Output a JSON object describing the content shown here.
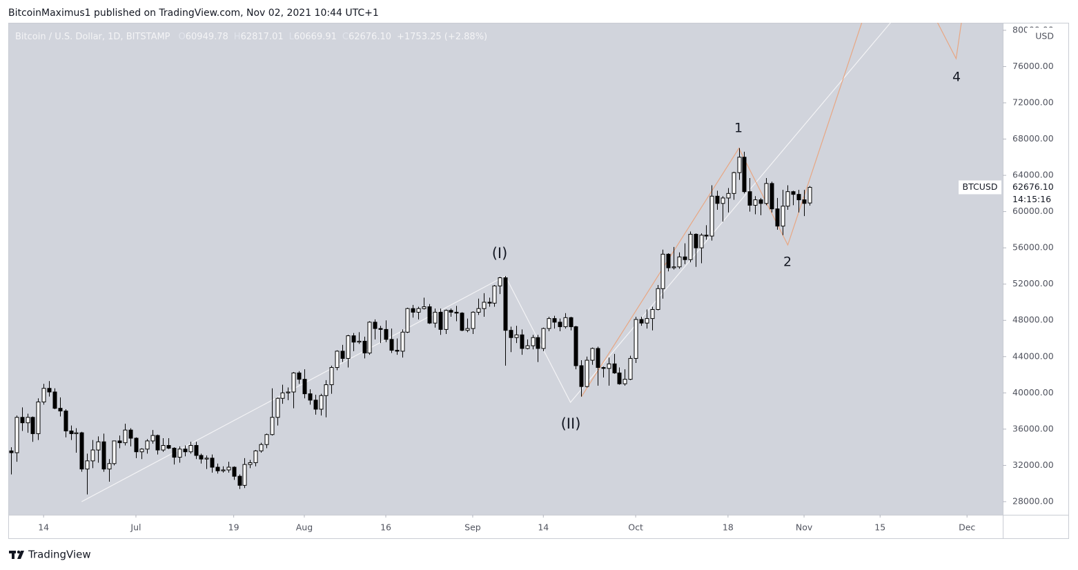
{
  "header": {
    "publisher": "BitcoinMaximus1 published on TradingView.com, Nov 02, 2021 10:44 UTC+1"
  },
  "footer": {
    "brand": "TradingView"
  },
  "chart_data": {
    "type": "candlestick",
    "title": "Bitcoin / U.S. Dollar, 1D, BITSTAMP",
    "ohlc_letters": [
      "O",
      "H",
      "L",
      "C"
    ],
    "ohlc_labels": [
      "60949.78",
      "62817.01",
      "60669.91",
      "62676.10"
    ],
    "change": "+1753.25 (+2.88%)",
    "symbol": "BTCUSD",
    "price_label": "62676.10",
    "countdown": "14:15:16",
    "currency": "USD",
    "up_color": "#ffffff",
    "down_color": "#000000",
    "wick_color": "#000000",
    "grid": false,
    "xlim": [
      "2021-06-07T12:00:00Z",
      "2021-12-07T14:00:00Z"
    ],
    "ylim": [
      26550,
      80830
    ],
    "xticks": [
      {
        "value": "2021-06-14",
        "label": "14"
      },
      {
        "value": "2021-07-01",
        "label": "Jul"
      },
      {
        "value": "2021-07-19",
        "label": "19"
      },
      {
        "value": "2021-08-01",
        "label": "Aug"
      },
      {
        "value": "2021-08-16",
        "label": "16"
      },
      {
        "value": "2021-09-01",
        "label": "Sep"
      },
      {
        "value": "2021-09-14",
        "label": "14"
      },
      {
        "value": "2021-10-01",
        "label": "Oct"
      },
      {
        "value": "2021-10-18",
        "label": "18"
      },
      {
        "value": "2021-11-01",
        "label": "Nov"
      },
      {
        "value": "2021-11-15",
        "label": "15"
      },
      {
        "value": "2021-12-01",
        "label": "Dec"
      }
    ],
    "yticks": [
      {
        "value": 28000,
        "label": "28000.00"
      },
      {
        "value": 32000,
        "label": "32000.00"
      },
      {
        "value": 36000,
        "label": "36000.00"
      },
      {
        "value": 40000,
        "label": "40000.00"
      },
      {
        "value": 44000,
        "label": "44000.00"
      },
      {
        "value": 48000,
        "label": "48000.00"
      },
      {
        "value": 52000,
        "label": "52000.00"
      },
      {
        "value": 56000,
        "label": "56000.00"
      },
      {
        "value": 60000,
        "label": "60000.00"
      },
      {
        "value": 64000,
        "label": "64000.00"
      },
      {
        "value": 68000,
        "label": "68000.00"
      },
      {
        "value": 72000,
        "label": "72000.00"
      },
      {
        "value": 76000,
        "label": "76000.00"
      },
      {
        "value": 80000,
        "label": "80000.00"
      }
    ],
    "x": [
      "2021-06-08",
      "2021-06-09",
      "2021-06-10",
      "2021-06-11",
      "2021-06-12",
      "2021-06-13",
      "2021-06-14",
      "2021-06-15",
      "2021-06-16",
      "2021-06-17",
      "2021-06-18",
      "2021-06-19",
      "2021-06-20",
      "2021-06-21",
      "2021-06-22",
      "2021-06-23",
      "2021-06-24",
      "2021-06-25",
      "2021-06-26",
      "2021-06-27",
      "2021-06-28",
      "2021-06-29",
      "2021-06-30",
      "2021-07-01",
      "2021-07-02",
      "2021-07-03",
      "2021-07-04",
      "2021-07-05",
      "2021-07-06",
      "2021-07-07",
      "2021-07-08",
      "2021-07-09",
      "2021-07-10",
      "2021-07-11",
      "2021-07-12",
      "2021-07-13",
      "2021-07-14",
      "2021-07-15",
      "2021-07-16",
      "2021-07-17",
      "2021-07-18",
      "2021-07-19",
      "2021-07-20",
      "2021-07-21",
      "2021-07-22",
      "2021-07-23",
      "2021-07-24",
      "2021-07-25",
      "2021-07-26",
      "2021-07-27",
      "2021-07-28",
      "2021-07-29",
      "2021-07-30",
      "2021-07-31",
      "2021-08-01",
      "2021-08-02",
      "2021-08-03",
      "2021-08-04",
      "2021-08-05",
      "2021-08-06",
      "2021-08-07",
      "2021-08-08",
      "2021-08-09",
      "2021-08-10",
      "2021-08-11",
      "2021-08-12",
      "2021-08-13",
      "2021-08-14",
      "2021-08-15",
      "2021-08-16",
      "2021-08-17",
      "2021-08-18",
      "2021-08-19",
      "2021-08-20",
      "2021-08-21",
      "2021-08-22",
      "2021-08-23",
      "2021-08-24",
      "2021-08-25",
      "2021-08-26",
      "2021-08-27",
      "2021-08-28",
      "2021-08-29",
      "2021-08-30",
      "2021-08-31",
      "2021-09-01",
      "2021-09-02",
      "2021-09-03",
      "2021-09-04",
      "2021-09-05",
      "2021-09-06",
      "2021-09-07",
      "2021-09-08",
      "2021-09-09",
      "2021-09-10",
      "2021-09-11",
      "2021-09-12",
      "2021-09-13",
      "2021-09-14",
      "2021-09-15",
      "2021-09-16",
      "2021-09-17",
      "2021-09-18",
      "2021-09-19",
      "2021-09-20",
      "2021-09-21",
      "2021-09-22",
      "2021-09-23",
      "2021-09-24",
      "2021-09-25",
      "2021-09-26",
      "2021-09-27",
      "2021-09-28",
      "2021-09-29",
      "2021-09-30",
      "2021-10-01",
      "2021-10-02",
      "2021-10-03",
      "2021-10-04",
      "2021-10-05",
      "2021-10-06",
      "2021-10-07",
      "2021-10-08",
      "2021-10-09",
      "2021-10-10",
      "2021-10-11",
      "2021-10-12",
      "2021-10-13",
      "2021-10-14",
      "2021-10-15",
      "2021-10-16",
      "2021-10-17",
      "2021-10-18",
      "2021-10-19",
      "2021-10-20",
      "2021-10-21",
      "2021-10-22",
      "2021-10-23",
      "2021-10-24",
      "2021-10-25",
      "2021-10-26",
      "2021-10-27",
      "2021-10-28",
      "2021-10-29",
      "2021-10-30",
      "2021-10-31",
      "2021-11-01",
      "2021-11-02"
    ],
    "candles": [
      [
        33600,
        34000,
        31000,
        33400
      ],
      [
        33400,
        37500,
        32400,
        37300
      ],
      [
        37300,
        38400,
        35800,
        36700
      ],
      [
        36700,
        37700,
        35600,
        37300
      ],
      [
        37300,
        37400,
        34600,
        35500
      ],
      [
        35500,
        39400,
        34800,
        39000
      ],
      [
        39000,
        41000,
        38700,
        40500
      ],
      [
        40500,
        41300,
        39600,
        40100
      ],
      [
        40100,
        40500,
        38200,
        38300
      ],
      [
        38300,
        39500,
        37400,
        38000
      ],
      [
        38000,
        38200,
        35100,
        35800
      ],
      [
        35800,
        36400,
        34800,
        35500
      ],
      [
        35500,
        36100,
        33400,
        35600
      ],
      [
        35600,
        35700,
        31300,
        31600
      ],
      [
        31600,
        33300,
        28800,
        32500
      ],
      [
        32500,
        34800,
        31700,
        33700
      ],
      [
        33700,
        35200,
        32300,
        34600
      ],
      [
        34600,
        35500,
        31300,
        31600
      ],
      [
        31600,
        32700,
        30200,
        32200
      ],
      [
        32200,
        34700,
        32000,
        34700
      ],
      [
        34700,
        35300,
        33900,
        34500
      ],
      [
        34500,
        36600,
        34200,
        35900
      ],
      [
        35900,
        36100,
        34100,
        35000
      ],
      [
        35000,
        35100,
        32800,
        33500
      ],
      [
        33500,
        33900,
        32700,
        33800
      ],
      [
        33800,
        34900,
        33300,
        34700
      ],
      [
        34700,
        35900,
        34400,
        35300
      ],
      [
        35300,
        35400,
        33200,
        33700
      ],
      [
        33700,
        35000,
        33500,
        34200
      ],
      [
        34200,
        35000,
        33800,
        33900
      ],
      [
        33900,
        34000,
        32100,
        32900
      ],
      [
        32900,
        34100,
        32300,
        33800
      ],
      [
        33800,
        34200,
        33000,
        33500
      ],
      [
        33500,
        34600,
        33300,
        34200
      ],
      [
        34200,
        34600,
        32700,
        33100
      ],
      [
        33100,
        33300,
        32200,
        32700
      ],
      [
        32700,
        33100,
        31600,
        32800
      ],
      [
        32800,
        33200,
        31200,
        31800
      ],
      [
        31800,
        32200,
        31100,
        31400
      ],
      [
        31400,
        31900,
        31200,
        31500
      ],
      [
        31500,
        32400,
        31200,
        31800
      ],
      [
        31800,
        31900,
        30400,
        30800
      ],
      [
        30800,
        31000,
        29400,
        29800
      ],
      [
        29800,
        32800,
        29500,
        32100
      ],
      [
        32100,
        32600,
        31700,
        32300
      ],
      [
        32300,
        33700,
        31900,
        33600
      ],
      [
        33600,
        34500,
        33400,
        34300
      ],
      [
        34300,
        35500,
        33900,
        35400
      ],
      [
        35400,
        40500,
        35300,
        37300
      ],
      [
        37300,
        39500,
        36400,
        39400
      ],
      [
        39400,
        40900,
        38800,
        40000
      ],
      [
        40000,
        40600,
        39200,
        40100
      ],
      [
        40100,
        42300,
        38300,
        42200
      ],
      [
        42200,
        42400,
        41000,
        41500
      ],
      [
        41500,
        42600,
        39400,
        39900
      ],
      [
        39900,
        40400,
        38700,
        39200
      ],
      [
        39200,
        39800,
        37600,
        38200
      ],
      [
        38200,
        39900,
        37500,
        39700
      ],
      [
        39700,
        41400,
        37300,
        40900
      ],
      [
        40900,
        43000,
        39900,
        42800
      ],
      [
        42800,
        44700,
        42500,
        44600
      ],
      [
        44600,
        45300,
        43400,
        43800
      ],
      [
        43800,
        46400,
        42800,
        46300
      ],
      [
        46300,
        46600,
        44600,
        45600
      ],
      [
        45600,
        46700,
        45400,
        45700
      ],
      [
        45700,
        46200,
        43800,
        44400
      ],
      [
        44400,
        47900,
        44200,
        47800
      ],
      [
        47800,
        48100,
        45900,
        47100
      ],
      [
        47100,
        47400,
        45500,
        47000
      ],
      [
        47000,
        48000,
        45600,
        45900
      ],
      [
        45900,
        47100,
        44400,
        44700
      ],
      [
        44700,
        46000,
        44200,
        44600
      ],
      [
        44600,
        47000,
        43900,
        46700
      ],
      [
        46700,
        49400,
        46600,
        49300
      ],
      [
        49300,
        49700,
        48300,
        48900
      ],
      [
        48900,
        49500,
        48100,
        49300
      ],
      [
        49300,
        50500,
        49200,
        49500
      ],
      [
        49500,
        49800,
        47600,
        47700
      ],
      [
        47700,
        49300,
        47200,
        48900
      ],
      [
        48900,
        49300,
        46400,
        47000
      ],
      [
        47000,
        49200,
        46500,
        49100
      ],
      [
        49100,
        49300,
        48400,
        48900
      ],
      [
        48900,
        49600,
        47900,
        48800
      ],
      [
        48800,
        48900,
        46800,
        46900
      ],
      [
        46900,
        48200,
        46700,
        47100
      ],
      [
        47100,
        49000,
        46500,
        48900
      ],
      [
        48900,
        50400,
        48600,
        49300
      ],
      [
        49300,
        51000,
        48400,
        50000
      ],
      [
        50000,
        50500,
        49500,
        49900
      ],
      [
        49900,
        51900,
        49500,
        51800
      ],
      [
        51800,
        52800,
        50900,
        52700
      ],
      [
        52700,
        52900,
        43000,
        46900
      ],
      [
        46900,
        47300,
        44500,
        46100
      ],
      [
        46100,
        47400,
        45500,
        46400
      ],
      [
        46400,
        47000,
        44200,
        44900
      ],
      [
        44900,
        45900,
        44800,
        45200
      ],
      [
        45200,
        46400,
        44800,
        46100
      ],
      [
        46100,
        46400,
        43400,
        44900
      ],
      [
        44900,
        47200,
        44600,
        47100
      ],
      [
        47100,
        48400,
        46800,
        48200
      ],
      [
        48200,
        48500,
        47100,
        47800
      ],
      [
        47800,
        48200,
        46800,
        47300
      ],
      [
        47300,
        48800,
        47100,
        48300
      ],
      [
        48300,
        48400,
        46900,
        47300
      ],
      [
        47300,
        47400,
        42600,
        43000
      ],
      [
        43000,
        43600,
        39600,
        40700
      ],
      [
        40700,
        44000,
        40600,
        43600
      ],
      [
        43600,
        45000,
        43100,
        44900
      ],
      [
        44900,
        45100,
        40800,
        42800
      ],
      [
        42800,
        42900,
        41700,
        42700
      ],
      [
        42700,
        43900,
        40800,
        43200
      ],
      [
        43200,
        44300,
        42100,
        42200
      ],
      [
        42200,
        42800,
        40900,
        41000
      ],
      [
        41000,
        42600,
        40800,
        41500
      ],
      [
        41500,
        44100,
        41400,
        43800
      ],
      [
        43800,
        48400,
        43300,
        48100
      ],
      [
        48100,
        48400,
        47400,
        47700
      ],
      [
        47700,
        49200,
        47100,
        48200
      ],
      [
        48200,
        49500,
        46900,
        49200
      ],
      [
        49200,
        51900,
        49100,
        51500
      ],
      [
        51500,
        55800,
        50400,
        55300
      ],
      [
        55300,
        55400,
        53400,
        53800
      ],
      [
        53800,
        56100,
        53600,
        53900
      ],
      [
        53900,
        55500,
        53700,
        55000
      ],
      [
        55000,
        56500,
        54200,
        54700
      ],
      [
        54700,
        57800,
        54400,
        57500
      ],
      [
        57500,
        57600,
        53900,
        56000
      ],
      [
        56000,
        57600,
        54300,
        57400
      ],
      [
        57400,
        58500,
        56900,
        57300
      ],
      [
        57300,
        62900,
        56800,
        61700
      ],
      [
        61700,
        62300,
        60200,
        60900
      ],
      [
        60900,
        61700,
        58900,
        61500
      ],
      [
        61500,
        62600,
        59900,
        62000
      ],
      [
        62000,
        64400,
        61300,
        64300
      ],
      [
        64300,
        67000,
        63500,
        66000
      ],
      [
        66000,
        66600,
        62000,
        62200
      ],
      [
        62200,
        63700,
        60000,
        60700
      ],
      [
        60700,
        61700,
        59700,
        61300
      ],
      [
        61300,
        61500,
        59600,
        60900
      ],
      [
        60900,
        63700,
        60700,
        63100
      ],
      [
        63100,
        63300,
        59900,
        60300
      ],
      [
        60300,
        61500,
        58000,
        58400
      ],
      [
        58400,
        62400,
        57400,
        60600
      ],
      [
        60600,
        62900,
        60200,
        62200
      ],
      [
        62200,
        62300,
        60700,
        61900
      ],
      [
        61900,
        62400,
        59900,
        61300
      ],
      [
        61300,
        62400,
        59500,
        60900
      ],
      [
        60949.78,
        62817.01,
        60669.91,
        62676.1
      ]
    ],
    "overlays": [
      {
        "color": "#f4f4f6",
        "points": [
          [
            "2021-06-21",
            28000
          ],
          [
            "2021-09-07",
            52900
          ],
          [
            "2021-09-19",
            38960
          ],
          [
            "2021-11-17",
            80900
          ]
        ]
      },
      {
        "color": "#e8a682",
        "points": [
          [
            "2021-09-21",
            39570
          ],
          [
            "2021-10-20",
            66980
          ],
          [
            "2021-10-29",
            56320
          ],
          [
            "2021-11-12",
            81500
          ],
          [
            "2021-11-25",
            81500
          ],
          [
            "2021-11-29",
            76870
          ],
          [
            "2021-11-30",
            81000
          ]
        ]
      }
    ],
    "annotations": [
      {
        "text": "(I)",
        "color": "#f4f4f6"
      },
      {
        "text": "(II)",
        "color": "#f4f4f6"
      },
      {
        "text": "1",
        "color": "#f57c00"
      },
      {
        "text": "2",
        "color": "#f57c00"
      },
      {
        "text": "4",
        "color": "#f57c00"
      }
    ]
  }
}
